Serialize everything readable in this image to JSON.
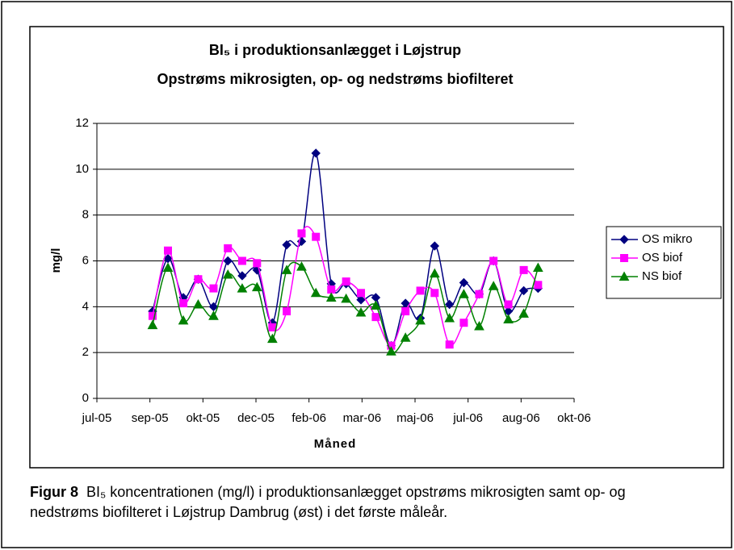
{
  "chart_data": {
    "type": "line",
    "title": "BI₅ i produktionsanlægget i Løjstrup",
    "subtitle": "Opstrøms mikrosigten, op- og nedstrøms biofilteret",
    "y_label": "mg/l",
    "x_label": "Måned",
    "x": [
      1.05,
      1.34,
      1.63,
      1.91,
      2.2,
      2.47,
      2.74,
      3.02,
      3.31,
      3.58,
      3.86,
      4.13,
      4.42,
      4.7,
      4.98,
      5.26,
      5.55,
      5.82,
      6.1,
      6.37,
      6.65,
      6.92,
      7.21,
      7.48,
      7.76,
      8.05,
      8.32
    ],
    "series": [
      {
        "name": "OS mikro",
        "color": "#000080",
        "marker": "diamond",
        "values": [
          3.8,
          6.1,
          4.4,
          5.2,
          4.0,
          6.0,
          5.35,
          5.6,
          3.3,
          6.7,
          6.85,
          10.7,
          5.0,
          5.0,
          4.3,
          4.4,
          2.3,
          4.15,
          3.5,
          6.65,
          4.1,
          5.05,
          4.55,
          6.0,
          3.8,
          4.7,
          4.8
        ]
      },
      {
        "name": "OS biof",
        "color": "#ff00ff",
        "marker": "square",
        "values": [
          3.6,
          6.45,
          4.15,
          5.2,
          4.8,
          6.55,
          6.0,
          5.9,
          3.1,
          3.8,
          7.2,
          7.05,
          4.75,
          5.1,
          4.6,
          3.55,
          2.3,
          3.8,
          4.7,
          4.6,
          2.35,
          3.3,
          4.55,
          6.0,
          4.1,
          5.6,
          4.95
        ]
      },
      {
        "name": "NS biof",
        "color": "#008000",
        "marker": "triangle",
        "values": [
          3.2,
          5.7,
          3.4,
          4.1,
          3.6,
          5.4,
          4.8,
          4.85,
          2.6,
          5.6,
          5.75,
          4.6,
          4.4,
          4.35,
          3.75,
          4.05,
          2.05,
          2.65,
          3.4,
          5.45,
          3.5,
          4.55,
          3.15,
          4.9,
          3.45,
          3.7,
          5.7
        ]
      }
    ],
    "xlim": [
      0,
      9
    ],
    "xticks": [
      {
        "value": 0,
        "label": "jul-05"
      },
      {
        "value": 1,
        "label": "sep-05"
      },
      {
        "value": 2,
        "label": "okt-05"
      },
      {
        "value": 3,
        "label": "dec-05"
      },
      {
        "value": 4,
        "label": "feb-06"
      },
      {
        "value": 5,
        "label": "mar-06"
      },
      {
        "value": 6,
        "label": "maj-06"
      },
      {
        "value": 7,
        "label": "jul-06"
      },
      {
        "value": 8,
        "label": "aug-06"
      },
      {
        "value": 9,
        "label": "okt-06"
      }
    ],
    "ylim": [
      0,
      12
    ],
    "yticks": [
      0,
      2,
      4,
      6,
      8,
      10,
      12
    ],
    "grid": true,
    "smooth": true,
    "legend": "right"
  },
  "caption": {
    "label": "Figur 8",
    "text": "BI₅ koncentrationen (mg/l) i produktionsanlægget opstrøms mikrosigten samt op- og nedstrøms biofilteret i Løjstrup Dambrug (øst)  i det første måleår."
  }
}
